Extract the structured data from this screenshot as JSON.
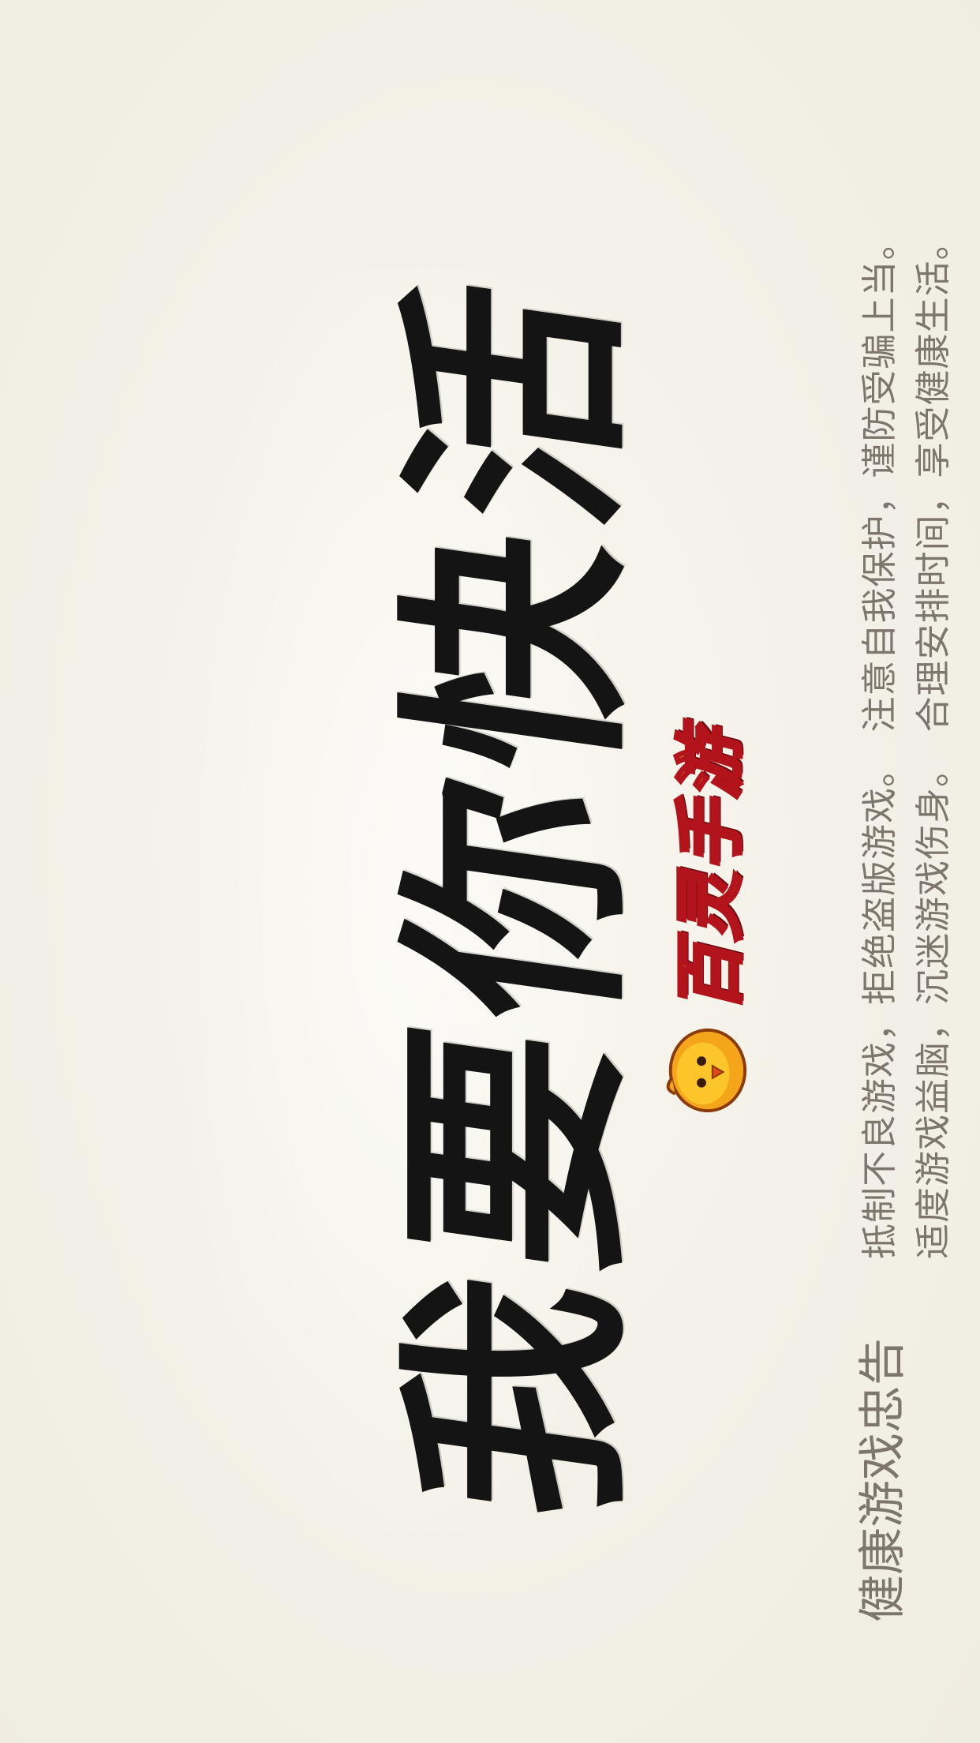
{
  "splash": {
    "calligraphy_text": "我要你快活",
    "logo_text": "百灵手游",
    "advisory": {
      "title": "健康游戏忠告",
      "line_1": "抵制不良游戏，拒绝盗版游戏。　注意自我保护，谨防受骗上当。",
      "line_2": "适度游戏益脑，沉迷游戏伤身。　合理安排时间，享受健康生活。"
    }
  },
  "icons": {
    "logo_mascot": "yellow-chick-mascot-icon"
  },
  "colors": {
    "background": "#f4f2e9",
    "calligraphy_ink": "#141414",
    "advisory_text": "#7d766d",
    "logo_yellow": "#f7c51b",
    "logo_red": "#b3141c"
  }
}
